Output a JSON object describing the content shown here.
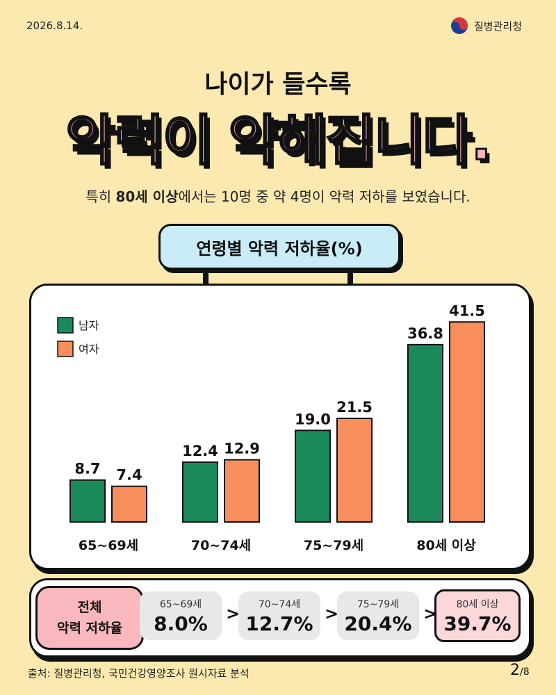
{
  "header": {
    "date": "2026.8.14.",
    "agency": "질병관리청"
  },
  "title": {
    "subtitle": "나이가 들수록",
    "headline": "악력이 약해집니다.",
    "lead_pre": "특히 ",
    "lead_bold": "80세 이상",
    "lead_post": "에서는 10명 중 약 4명이 악력 저하를 보였습니다."
  },
  "chart_title": "연령별 악력 저하율(%)",
  "chart_data": {
    "type": "bar",
    "categories": [
      "65~69세",
      "70~74세",
      "75~79세",
      "80세 이상"
    ],
    "series": [
      {
        "name": "남자",
        "color": "#1a8a5a",
        "values": [
          8.7,
          12.4,
          19.0,
          36.8
        ]
      },
      {
        "name": "여자",
        "color": "#f78e5c",
        "values": [
          7.4,
          12.9,
          21.5,
          41.5
        ]
      }
    ],
    "ylim": [
      0,
      45
    ],
    "legend": "top-left",
    "grid": false
  },
  "summary": {
    "label_line1": "전체",
    "label_line2": "악력 저하율",
    "items": [
      {
        "label": "65~69세",
        "value": "8.0%"
      },
      {
        "label": "70~74세",
        "value": "12.7%"
      },
      {
        "label": "75~79세",
        "value": "20.4%"
      },
      {
        "label": "80세 이상",
        "value": "39.7%"
      }
    ],
    "arrow": ">"
  },
  "footer": {
    "source": "출처: 질병관리청, 국민건강영양조사 원시자료 분석",
    "page_current": "2",
    "page_total": "/8"
  }
}
